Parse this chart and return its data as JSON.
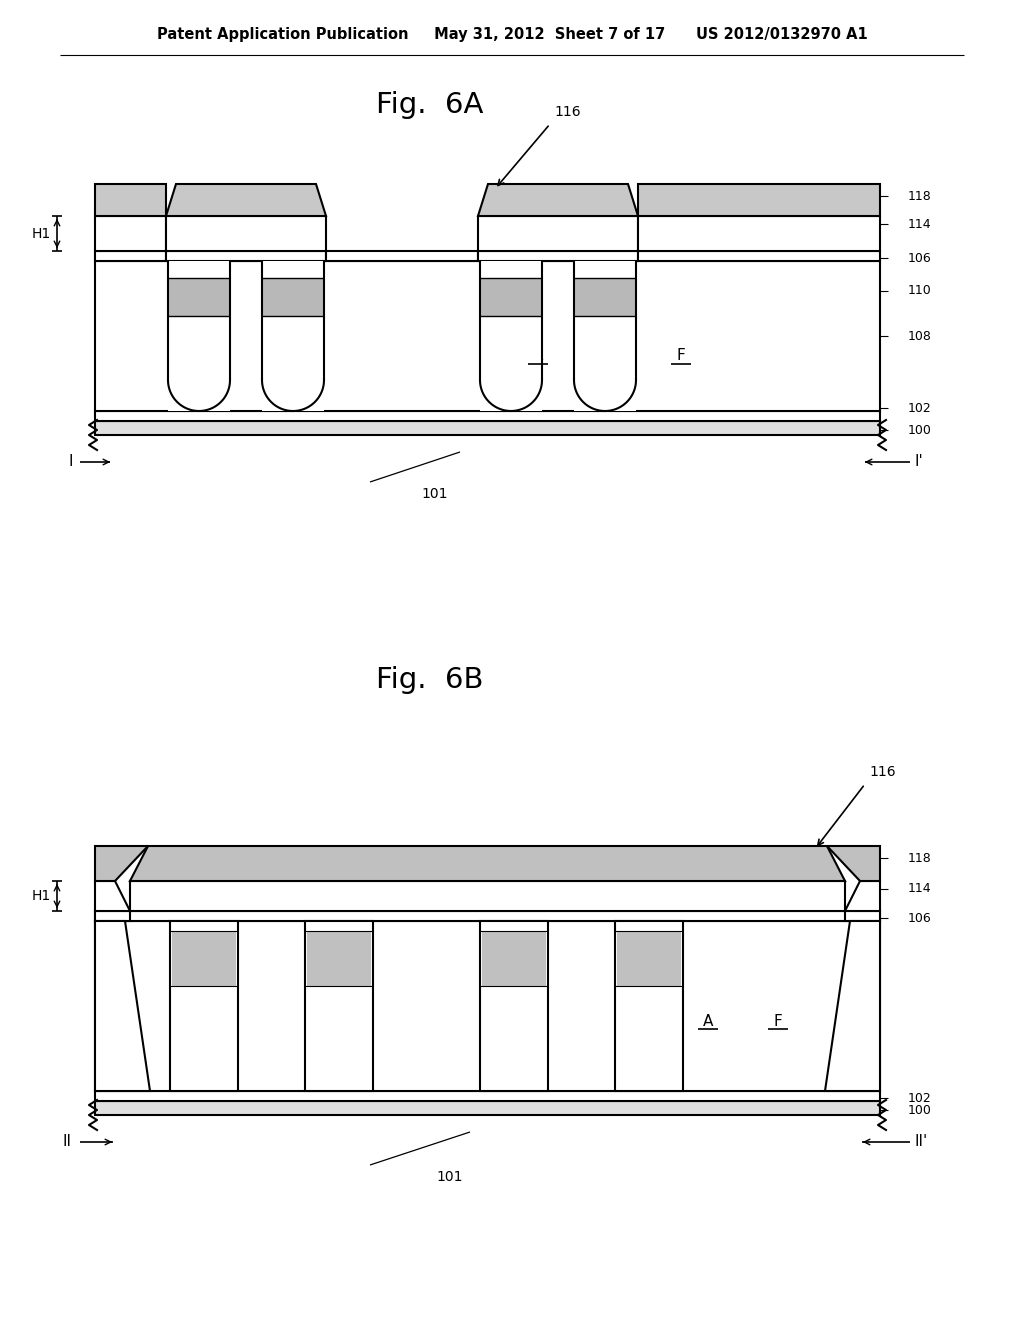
{
  "header": "Patent Application Publication     May 31, 2012  Sheet 7 of 17      US 2012/0132970 A1",
  "fig6A_title": "Fig.  6A",
  "fig6B_title": "Fig.  6B",
  "bg_color": "#ffffff"
}
